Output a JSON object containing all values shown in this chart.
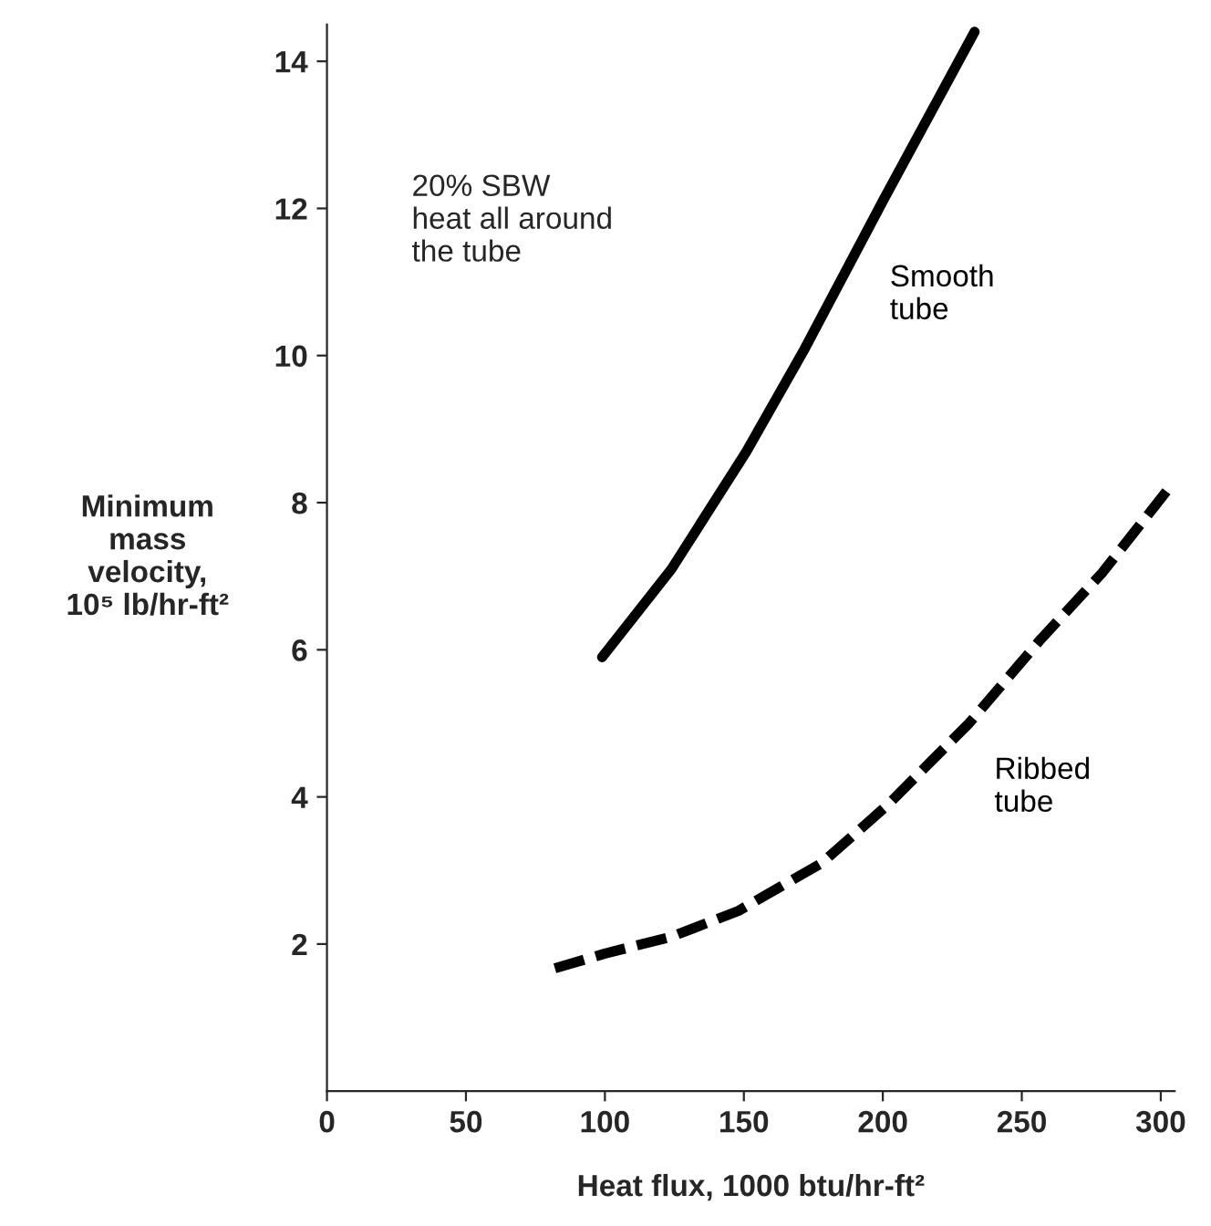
{
  "chart_data": {
    "type": "line",
    "xlabel": "Heat flux, 1000 btu/hr-ft²",
    "ylabel": "Minimum\nmass\nvelocity,\n10⁵ lb/hr-ft²",
    "annotations": [
      "20% SBW\nheat all around\nthe tube"
    ],
    "xlim": [
      0,
      305
    ],
    "ylim": [
      0,
      14.5
    ],
    "xticks": [
      0,
      50,
      100,
      150,
      200,
      250,
      300
    ],
    "yticks": [
      2,
      4,
      6,
      8,
      10,
      12,
      14
    ],
    "grid": false,
    "legend": false,
    "series": [
      {
        "name": "Smooth\ntube",
        "color": "#000000",
        "line_style": "solid",
        "x": [
          99,
          124,
          151,
          172,
          200,
          233
        ],
        "values": [
          5.9,
          7.1,
          8.7,
          10.1,
          12.1,
          14.4
        ]
      },
      {
        "name": "Ribbed\ntube",
        "color": "#000000",
        "line_style": "dashed",
        "x": [
          82,
          100,
          124,
          148,
          178,
          202,
          231,
          257,
          279,
          303
        ],
        "values": [
          1.67,
          1.87,
          2.1,
          2.45,
          3.1,
          3.9,
          5.0,
          6.15,
          7.05,
          8.2
        ]
      }
    ]
  }
}
